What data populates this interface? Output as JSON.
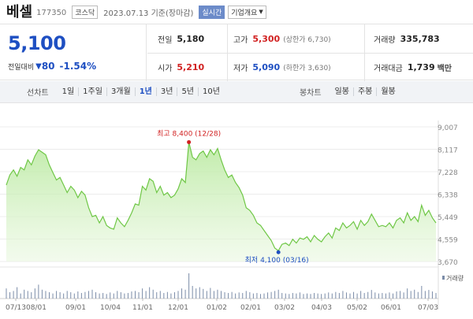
{
  "header": {
    "name": "베셀",
    "code": "177350",
    "market": "코스닥",
    "date": "2023.07.13 기준(장마감)",
    "live_button": "실시간",
    "corp_button": "기업개요"
  },
  "price": {
    "current": "5,100",
    "change_label": "전일대비",
    "change_arrow": "▼",
    "change_value": "80",
    "change_pct": "-1.54%"
  },
  "stats": {
    "prev": {
      "label": "전일",
      "value": "5,180"
    },
    "high": {
      "label": "고가",
      "value": "5,300",
      "limit": "(상한가 6,730)"
    },
    "volume": {
      "label": "거래량",
      "value": "335,783"
    },
    "open": {
      "label": "시가",
      "value": "5,210"
    },
    "low": {
      "label": "저가",
      "value": "5,090",
      "limit": "(하한가 3,630)"
    },
    "amount": {
      "label": "거래대금",
      "value": "1,739",
      "unit": "백만"
    }
  },
  "tabs": {
    "line_label": "선차트",
    "line": [
      "1일",
      "1주일",
      "3개월",
      "1년",
      "3년",
      "5년",
      "10년"
    ],
    "active": "1년",
    "candle_label": "봉차트",
    "candle": [
      "일봉",
      "주봉",
      "월봉"
    ]
  },
  "chart_data": {
    "type": "area",
    "title": "",
    "xlabel": "",
    "ylabel": "",
    "ylim": [
      3670,
      9007
    ],
    "y_ticks": [
      "9,007",
      "8,117",
      "7,228",
      "6,338",
      "5,449",
      "4,559",
      "3,670"
    ],
    "x_ticks": [
      "07/13",
      "08/01",
      "09/01",
      "10/04",
      "11/01",
      "12/01",
      "01/02",
      "02/01",
      "03/02",
      "04/03",
      "05/02",
      "06/01",
      "07/03"
    ],
    "series": [
      {
        "values": [
          6700,
          7100,
          7300,
          7050,
          7400,
          7300,
          7700,
          7500,
          7850,
          8100,
          8000,
          7900,
          7500,
          7200,
          6900,
          7000,
          6700,
          6400,
          6650,
          6500,
          6200,
          6450,
          6300,
          5800,
          5450,
          5500,
          5200,
          5450,
          5100,
          5000,
          4950,
          5400,
          5200,
          5050,
          5300,
          5600,
          5950,
          5900,
          6650,
          6500,
          6950,
          6850,
          6400,
          6650,
          6300,
          6400,
          6200,
          6300,
          6550,
          6950,
          6800,
          8400,
          7800,
          7700,
          7950,
          8050,
          7800,
          8100,
          7900,
          8150,
          7700,
          7300,
          7000,
          7100,
          6800,
          6600,
          6300,
          5800,
          5700,
          5500,
          5200,
          5100,
          4900,
          4700,
          4500,
          4200,
          4100,
          4350,
          4400,
          4300,
          4550,
          4400,
          4600,
          4550,
          4650,
          4450,
          4700,
          4550,
          4450,
          4650,
          4800,
          4600,
          5000,
          4900,
          5200,
          5000,
          5100,
          5250,
          4950,
          5300,
          5100,
          5250,
          5550,
          5300,
          5050,
          5100,
          5050,
          5200,
          5000,
          5300,
          5400,
          5200,
          5600,
          5300,
          5450,
          5250,
          5900,
          5500,
          5700,
          5400,
          5200
        ]
      }
    ],
    "volume": {
      "label": "거래량",
      "values": [
        40,
        25,
        30,
        45,
        20,
        35,
        30,
        25,
        40,
        55,
        35,
        30,
        25,
        20,
        30,
        25,
        20,
        30,
        25,
        20,
        28,
        22,
        26,
        30,
        35,
        25,
        20,
        22,
        18,
        24,
        20,
        30,
        25,
        20,
        22,
        28,
        30,
        25,
        40,
        30,
        45,
        35,
        25,
        30,
        22,
        26,
        20,
        25,
        30,
        40,
        35,
        100,
        50,
        40,
        45,
        38,
        30,
        42,
        30,
        35,
        30,
        25,
        22,
        26,
        20,
        24,
        22,
        30,
        25,
        20,
        22,
        18,
        20,
        24,
        26,
        30,
        35,
        22,
        20,
        18,
        22,
        20,
        24,
        18,
        20,
        18,
        22,
        20,
        18,
        20,
        24,
        20,
        26,
        22,
        30,
        24,
        20,
        26,
        20,
        30,
        22,
        26,
        34,
        24,
        20,
        22,
        20,
        24,
        20,
        28,
        30,
        24,
        40,
        30,
        35,
        26,
        50,
        30,
        34,
        28,
        22
      ]
    },
    "annotations": {
      "max": {
        "label": "최고 8,400 (12/28)",
        "value": 8400,
        "index": 51
      },
      "min": {
        "label": "최저 4,100 (03/16)",
        "value": 4100,
        "index": 76
      }
    },
    "line_color": "#6fc746",
    "max_color": "#d12121",
    "min_color": "#1e4fc2"
  }
}
